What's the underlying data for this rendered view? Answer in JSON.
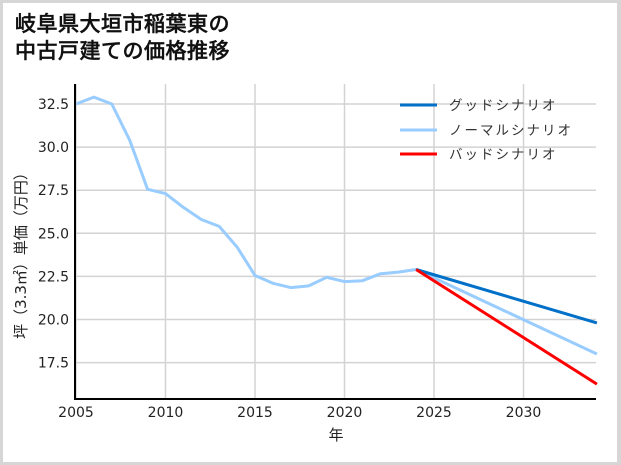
{
  "title": {
    "line1": "岐阜県大垣市稲葉東の",
    "line2": "中古戸建ての価格推移"
  },
  "colors": {
    "good": "#0070c8",
    "normal": "#99ccff",
    "bad": "#ff0000",
    "grid": "#d3d3d3",
    "axis": "#000000"
  },
  "chart_data": {
    "type": "line",
    "title": "岐阜県大垣市稲葉東の中古戸建ての価格推移",
    "xlabel": "年",
    "ylabel": "坪（3.3㎡）単価（万円）",
    "xlim": [
      2005,
      2034.1
    ],
    "ylim": [
      15.45,
      33.3
    ],
    "x_ticks": [
      2005,
      2010,
      2015,
      2020,
      2025,
      2030
    ],
    "y_ticks": [
      17.5,
      20.0,
      22.5,
      25.0,
      27.5,
      30.0,
      32.5
    ],
    "y_tick_labels": [
      "17.5",
      "20.0",
      "22.5",
      "25.0",
      "27.5",
      "30.0",
      "32.5"
    ],
    "grid": true,
    "legend_position": "upper right",
    "series": [
      {
        "name": "グッドシナリオ",
        "color": "#0070c8",
        "x": [
          2024,
          2034.1
        ],
        "values": [
          22.9,
          19.8
        ]
      },
      {
        "name": "ノーマルシナリオ",
        "color": "#99ccff",
        "x": [
          2005,
          2006,
          2007,
          2008,
          2009,
          2010,
          2011,
          2012,
          2013,
          2014,
          2015,
          2016,
          2017,
          2018,
          2019,
          2020,
          2021,
          2022,
          2023,
          2024,
          2034.1
        ],
        "values": [
          32.5,
          32.9,
          32.5,
          30.4,
          27.55,
          27.3,
          26.5,
          25.8,
          25.4,
          24.2,
          22.55,
          22.1,
          21.85,
          21.95,
          22.45,
          22.2,
          22.25,
          22.65,
          22.75,
          22.9,
          18.0
        ]
      },
      {
        "name": "バッドシナリオ",
        "color": "#ff0000",
        "x": [
          2024,
          2034.1
        ],
        "values": [
          22.9,
          16.25
        ]
      }
    ]
  }
}
